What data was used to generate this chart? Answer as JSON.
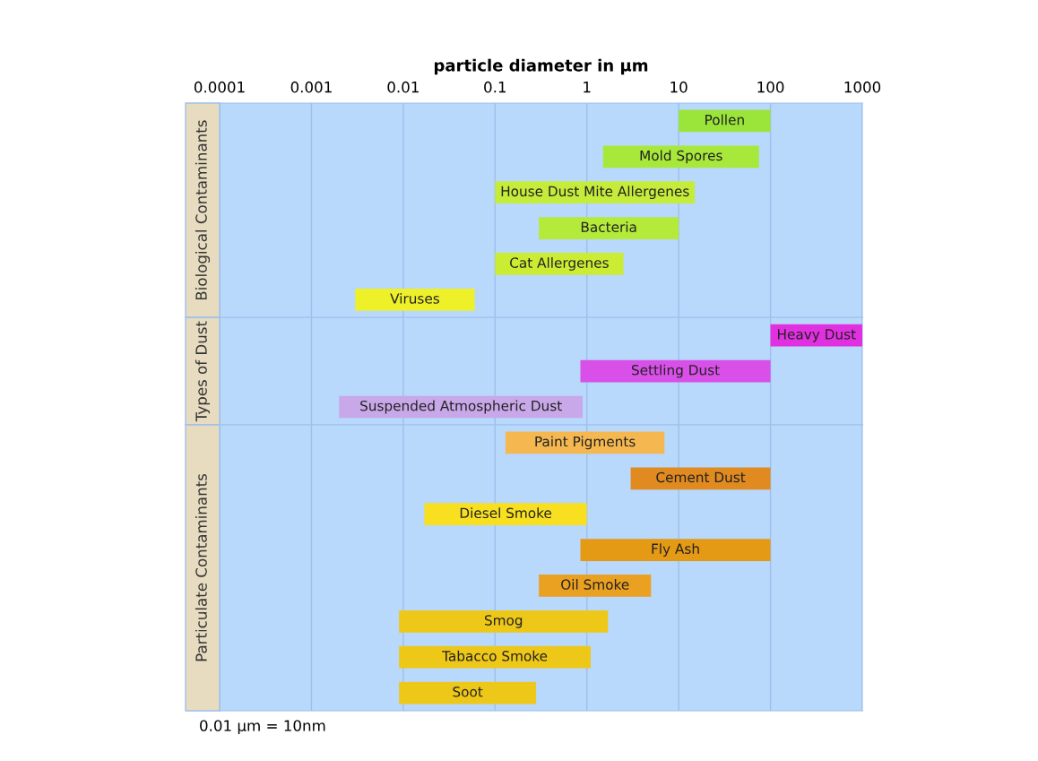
{
  "chart_data": [
    {
      "type": "bar",
      "orientation": "horizontal",
      "log": "x",
      "grid": "x",
      "tick_labels": "x",
      "xlabel": "particle diameter in µm",
      "ylabel": "Biological Contaminants",
      "xlim": [
        0.0001,
        1000
      ],
      "xticks": [
        0.0001,
        0.001,
        0.01,
        0.1,
        1,
        10,
        100,
        1000
      ],
      "categories": [
        "Pollen",
        "Mold Spores",
        "House Dust Mite Allergenes",
        "Bacteria",
        "Cat Allergenes",
        "Viruses"
      ],
      "base": [
        10,
        1.5,
        0.1,
        0.3,
        0.1,
        0.003
      ],
      "values": [
        90,
        73.5,
        14.9,
        9.7,
        2.4,
        0.057
      ],
      "colors": [
        "#9be53b",
        "#a8e83a",
        "#c5ec3a",
        "#b4ea3a",
        "#caec33",
        "#eef02a"
      ]
    },
    {
      "type": "bar",
      "orientation": "horizontal",
      "log": "x",
      "grid": "x",
      "tick_labels": false,
      "ylabel": "Types of Dust",
      "xlim": [
        0.0001,
        1000
      ],
      "categories": [
        "Heavy Dust",
        "Settling Dust",
        "Suspended Atmospheric Dust"
      ],
      "base": [
        100,
        0.85,
        0.002
      ],
      "values": [
        900,
        99.15,
        0.898
      ],
      "colors": [
        "#e030e0",
        "#d850e8",
        "#c8a8e8"
      ]
    },
    {
      "type": "bar",
      "orientation": "horizontal",
      "log": "x",
      "grid": "x",
      "tick_labels": false,
      "ylabel": "Particulate Contaminants",
      "xlim": [
        0.0001,
        1000
      ],
      "annotations": [
        "0.01 µm = 10nm"
      ],
      "categories": [
        "Paint Pigments",
        "Cement Dust",
        "Diesel Smoke",
        "Fly Ash",
        "Oil Smoke",
        "Smog",
        "Tabacco Smoke",
        "Soot"
      ],
      "base": [
        0.13,
        3,
        0.017,
        0.85,
        0.3,
        0.009,
        0.009,
        0.009
      ],
      "values": [
        6.87,
        97,
        0.983,
        99.15,
        4.7,
        1.691,
        1.091,
        0.271
      ],
      "colors": [
        "#f5b850",
        "#e08a20",
        "#f8e020",
        "#e59a15",
        "#eaa020",
        "#eec818",
        "#eec818",
        "#eec818"
      ]
    }
  ]
}
